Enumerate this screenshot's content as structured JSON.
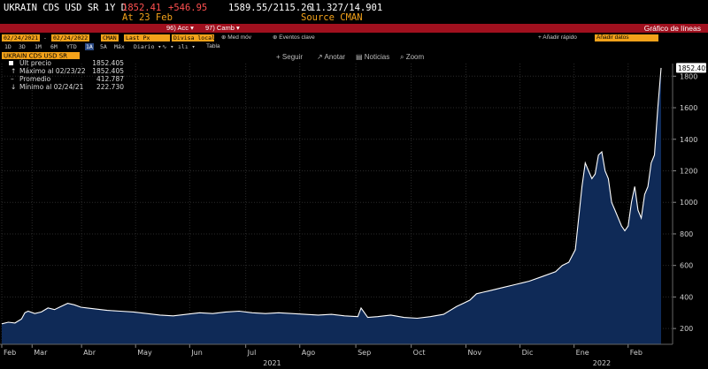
{
  "header": {
    "security": "UKRAIN CDS USD SR 1Y D",
    "last": "1852.41",
    "change": "+546.95",
    "range": "1589.55/2115.26",
    "spread": "11.327/14.901",
    "at": "At 23 Feb",
    "source": "Source CMAN"
  },
  "toolbar": {
    "acc": "96) Acc",
    "camb": "97) Camb",
    "title": "Gráfico de líneas",
    "date_from": "02/24/2021",
    "date_to": "02/24/2022",
    "source_field": "CMAN",
    "price_field": "Last Px",
    "currency": "Divisa local",
    "med_mov": "Med móv",
    "eventos": "Eventos clave",
    "anadir": "Añadir rápido",
    "anadir_datos": "Añadir datos",
    "periods": [
      "1D",
      "3D",
      "1M",
      "6M",
      "YTD",
      "1A",
      "5A",
      "Máx"
    ],
    "selected_period": "1A",
    "freq": "Diario",
    "tabla": "Tabla",
    "colors": {
      "accent": "#f3a21a",
      "bar": "#a0101e",
      "line": "#ffffff",
      "fill": "#0f2a57"
    }
  },
  "chart_tools": {
    "seguir": "Seguir",
    "anotar": "Anotar",
    "noticias": "Noticias",
    "zoom": "Zoom"
  },
  "legend": {
    "series": "UKRAIN CDS USD SR",
    "rows": [
      {
        "label": "Últ precio",
        "value": "1852.405"
      },
      {
        "label": "Máximo al 02/23/22",
        "value": "1852.405"
      },
      {
        "label": "Promedio",
        "value": "412.787"
      },
      {
        "label": "Mínimo al 02/24/21",
        "value": "222.730"
      }
    ]
  },
  "chart_data": {
    "type": "area",
    "ylim": [
      100,
      1880
    ],
    "yticks": [
      200,
      400,
      600,
      800,
      1000,
      1200,
      1400,
      1600,
      1800
    ],
    "last_label": "1852.405",
    "month_ticks": [
      {
        "label": "Feb",
        "t": 0
      },
      {
        "label": "Mar",
        "t": 0.046
      },
      {
        "label": "Abr",
        "t": 0.121
      },
      {
        "label": "May",
        "t": 0.203
      },
      {
        "label": "Jun",
        "t": 0.285
      },
      {
        "label": "Jul",
        "t": 0.37
      },
      {
        "label": "Ago",
        "t": 0.452
      },
      {
        "label": "Sep",
        "t": 0.537
      },
      {
        "label": "Oct",
        "t": 0.621
      },
      {
        "label": "Nov",
        "t": 0.704
      },
      {
        "label": "Dic",
        "t": 0.786
      },
      {
        "label": "Ene",
        "t": 0.868
      },
      {
        "label": "Feb",
        "t": 0.95
      }
    ],
    "years": [
      {
        "label": "2021",
        "t": 0.41
      },
      {
        "label": "2022",
        "t": 0.91
      }
    ],
    "x": [
      0,
      0.01,
      0.02,
      0.03,
      0.035,
      0.04,
      0.05,
      0.06,
      0.07,
      0.08,
      0.09,
      0.1,
      0.11,
      0.12,
      0.13,
      0.14,
      0.15,
      0.16,
      0.18,
      0.2,
      0.22,
      0.24,
      0.26,
      0.28,
      0.3,
      0.32,
      0.34,
      0.36,
      0.38,
      0.4,
      0.42,
      0.44,
      0.46,
      0.48,
      0.5,
      0.52,
      0.54,
      0.545,
      0.55,
      0.555,
      0.57,
      0.59,
      0.61,
      0.63,
      0.65,
      0.67,
      0.69,
      0.7,
      0.71,
      0.72,
      0.73,
      0.74,
      0.76,
      0.78,
      0.79,
      0.8,
      0.82,
      0.84,
      0.85,
      0.86,
      0.87,
      0.88,
      0.885,
      0.89,
      0.895,
      0.9,
      0.905,
      0.91,
      0.915,
      0.92,
      0.925,
      0.93,
      0.935,
      0.94,
      0.945,
      0.95,
      0.955,
      0.96,
      0.965,
      0.97,
      0.975,
      0.98,
      0.985,
      0.99,
      0.995,
      1.0
    ],
    "values": [
      230,
      240,
      235,
      260,
      300,
      310,
      295,
      305,
      330,
      320,
      340,
      360,
      350,
      335,
      330,
      325,
      320,
      315,
      310,
      305,
      295,
      285,
      280,
      290,
      300,
      295,
      305,
      310,
      300,
      295,
      300,
      295,
      290,
      285,
      290,
      280,
      275,
      330,
      300,
      270,
      275,
      285,
      270,
      265,
      275,
      290,
      340,
      360,
      380,
      420,
      430,
      440,
      460,
      480,
      490,
      500,
      530,
      560,
      600,
      620,
      700,
      1100,
      1250,
      1200,
      1150,
      1180,
      1300,
      1320,
      1200,
      1150,
      1000,
      950,
      900,
      850,
      820,
      850,
      1000,
      1100,
      950,
      900,
      1050,
      1100,
      1250,
      1300,
      1600,
      1852.405
    ]
  }
}
